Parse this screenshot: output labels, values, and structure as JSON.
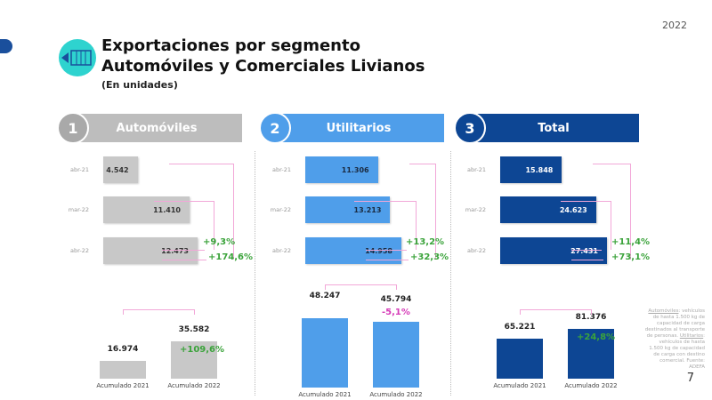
{
  "year": "2022",
  "title_line1": "Exportaciones por segmento",
  "title_line2": "Automóviles y Comerciales Livianos",
  "subtitle": "(En unidades)",
  "page_number": "7",
  "footnote": {
    "auto_term": "Automóviles",
    "auto_text": ": vehículos de hasta 1.500 kg de capacidad de carga destinados al transporte de personas.",
    "util_term": "Utilitarios",
    "util_text": ": vehículos de hasta 1.500 kg de capacidad de carga con destino comercial.",
    "source": "Fuente: ADEFA"
  },
  "chart_data": [
    {
      "type": "bar",
      "title": "Automóviles",
      "number": "1",
      "color": "#c8c8c8",
      "header_color": "#bdbdbd",
      "text_color": "#333333",
      "categories": [
        "abr-21",
        "mar-22",
        "abr-22"
      ],
      "values": [
        4542,
        11410,
        12473
      ],
      "labels": [
        "4.542",
        "11.410",
        "12.473"
      ],
      "var_month": "+9,3%",
      "var_year": "+174,6%",
      "cumulative": {
        "categories": [
          "Acumulado 2021",
          "Acumulado 2022"
        ],
        "values": [
          16974,
          35582
        ],
        "labels": [
          "16.974",
          "35.582"
        ],
        "variation": "+109,6%",
        "variation_color": "#3ba33b"
      }
    },
    {
      "type": "bar",
      "title": "Utilitarios",
      "number": "2",
      "color": "#4f9eea",
      "header_color": "#4f9eea",
      "text_color": "#1a2a40",
      "categories": [
        "abr-21",
        "mar-22",
        "abr-22"
      ],
      "values": [
        11306,
        13213,
        14958
      ],
      "labels": [
        "11.306",
        "13.213",
        "14.958"
      ],
      "var_month": "+13,2%",
      "var_year": "+32,3%",
      "cumulative": {
        "categories": [
          "Acumulado 2021",
          "Acumulado 2022"
        ],
        "values": [
          48247,
          45794
        ],
        "labels": [
          "48.247",
          "45.794"
        ],
        "variation": "-5,1%",
        "variation_color": "#d63bb8"
      }
    },
    {
      "type": "bar",
      "title": "Total",
      "number": "3",
      "color": "#0d4694",
      "header_color": "#0d4694",
      "text_color": "#ffffff",
      "categories": [
        "abr-21",
        "mar-22",
        "abr-22"
      ],
      "values": [
        15848,
        24623,
        27431
      ],
      "labels": [
        "15.848",
        "24.623",
        "27.431"
      ],
      "var_month": "+11,4%",
      "var_year": "+73,1%",
      "cumulative": {
        "categories": [
          "Acumulado 2021",
          "Acumulado 2022"
        ],
        "values": [
          65221,
          81376
        ],
        "labels": [
          "65.221",
          "81.376"
        ],
        "variation": "+24,8%",
        "variation_color": "#3ba33b"
      }
    }
  ]
}
